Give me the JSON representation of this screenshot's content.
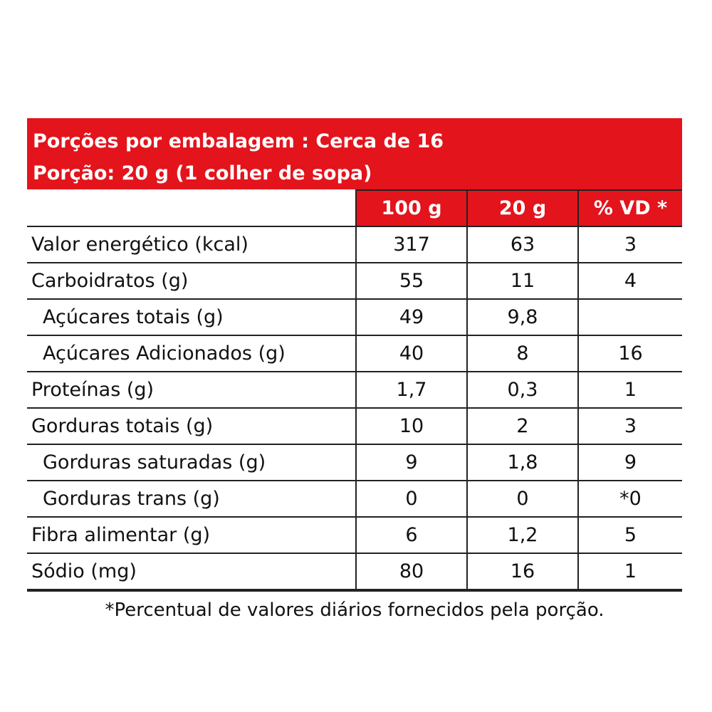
{
  "header": {
    "servings_line": "Porções por embalagem : Cerca de 16",
    "portion_line": "Porção: 20 g (1 colher de sopa)"
  },
  "columns": [
    "100 g",
    "20 g",
    "% VD *"
  ],
  "rows": [
    {
      "label": "Valor energético (kcal)",
      "v100": "317",
      "v20": "63",
      "vd": "3"
    },
    {
      "label": "Carboidratos (g)",
      "v100": "55",
      "v20": "11",
      "vd": "4"
    },
    {
      "label": "Açúcares totais (g)",
      "v100": "49",
      "v20": "9,8",
      "vd": ""
    },
    {
      "label": "Açúcares Adicionados (g)",
      "v100": "40",
      "v20": "8",
      "vd": "16"
    },
    {
      "label": "Proteínas (g)",
      "v100": "1,7",
      "v20": "0,3",
      "vd": "1"
    },
    {
      "label": "Gorduras totais (g)",
      "v100": "10",
      "v20": "2",
      "vd": "3"
    },
    {
      "label": "Gorduras saturadas (g)",
      "v100": "9",
      "v20": "1,8",
      "vd": "9"
    },
    {
      "label": "Gorduras trans (g)",
      "v100": "0",
      "v20": "0",
      "vd": "*0"
    },
    {
      "label": "Fibra alimentar (g)",
      "v100": "6",
      "v20": "1,2",
      "vd": "5"
    },
    {
      "label": "Sódio (mg)",
      "v100": "80",
      "v20": "16",
      "vd": "1"
    }
  ],
  "footnote": "*Percentual de valores diários fornecidos pela porção.",
  "colors": {
    "accent": "#e3141c",
    "text": "#111111",
    "border": "#222222"
  }
}
